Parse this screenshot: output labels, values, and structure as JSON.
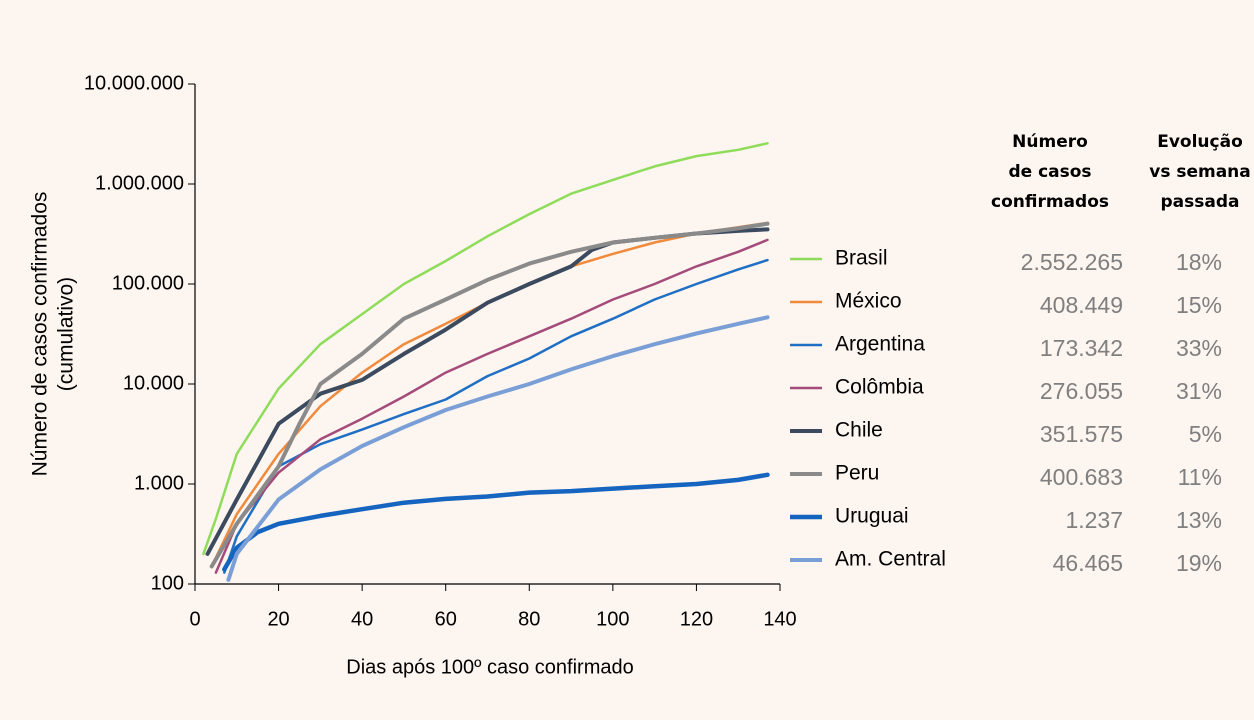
{
  "chart_data": {
    "type": "line",
    "log_scale": true,
    "grid": false,
    "xlabel": "Dias após 100º caso confirmado",
    "ylabel": [
      "Número de casos confirmados",
      "(cumulativo)"
    ],
    "xlim": [
      0,
      140
    ],
    "xticks": [
      0,
      20,
      40,
      60,
      80,
      100,
      120,
      140
    ],
    "ylim": [
      100,
      10000000
    ],
    "yticks": [
      {
        "value": 100,
        "label": "100"
      },
      {
        "value": 1000,
        "label": "1.000"
      },
      {
        "value": 10000,
        "label": "10.000"
      },
      {
        "value": 100000,
        "label": "100.000"
      },
      {
        "value": 1000000,
        "label": "1.000.000"
      },
      {
        "value": 10000000,
        "label": "10.000.000"
      }
    ],
    "series": [
      {
        "name": "Brasil",
        "color": "#8fdc5a",
        "width": 2.5,
        "x": [
          2,
          5,
          10,
          20,
          30,
          40,
          50,
          60,
          70,
          80,
          90,
          100,
          110,
          120,
          130,
          137
        ],
        "values": [
          200,
          450,
          2000,
          9000,
          25000,
          50000,
          100000,
          170000,
          300000,
          500000,
          800000,
          1100000,
          1500000,
          1900000,
          2200000,
          2552265
        ]
      },
      {
        "name": "México",
        "color": "#f08a3c",
        "width": 2.5,
        "x": [
          4,
          10,
          20,
          30,
          40,
          50,
          60,
          70,
          80,
          90,
          100,
          110,
          120,
          130,
          137
        ],
        "values": [
          150,
          500,
          2000,
          6000,
          13000,
          25000,
          40000,
          65000,
          100000,
          150000,
          200000,
          260000,
          320000,
          370000,
          408449
        ]
      },
      {
        "name": "Argentina",
        "color": "#1f6fc4",
        "width": 2.5,
        "x": [
          7,
          10,
          20,
          30,
          40,
          50,
          60,
          70,
          80,
          90,
          100,
          110,
          120,
          130,
          137
        ],
        "values": [
          130,
          300,
          1500,
          2500,
          3500,
          5000,
          7000,
          12000,
          18000,
          30000,
          45000,
          70000,
          100000,
          140000,
          173342
        ]
      },
      {
        "name": "Colômbia",
        "color": "#a44b7a",
        "width": 2.5,
        "x": [
          5,
          10,
          20,
          30,
          40,
          50,
          60,
          70,
          80,
          90,
          100,
          110,
          120,
          130,
          137
        ],
        "values": [
          130,
          400,
          1300,
          2800,
          4500,
          7500,
          13000,
          20000,
          30000,
          45000,
          70000,
          100000,
          150000,
          210000,
          276055
        ]
      },
      {
        "name": "Chile",
        "color": "#3b4a5e",
        "width": 4,
        "x": [
          3,
          10,
          20,
          30,
          40,
          50,
          60,
          70,
          80,
          90,
          95,
          100,
          110,
          120,
          130,
          137
        ],
        "values": [
          200,
          700,
          4000,
          8000,
          11000,
          20000,
          35000,
          65000,
          100000,
          150000,
          220000,
          260000,
          290000,
          320000,
          340000,
          351575
        ]
      },
      {
        "name": "Peru",
        "color": "#8a8a8a",
        "width": 4,
        "x": [
          4,
          10,
          20,
          25,
          30,
          40,
          50,
          60,
          70,
          80,
          90,
          100,
          110,
          120,
          130,
          137
        ],
        "values": [
          150,
          400,
          1500,
          4000,
          10000,
          20000,
          45000,
          70000,
          110000,
          160000,
          210000,
          260000,
          290000,
          320000,
          360000,
          400683
        ]
      },
      {
        "name": "Uruguai",
        "color": "#1565c0",
        "width": 4.5,
        "x": [
          7,
          10,
          15,
          20,
          30,
          40,
          50,
          60,
          70,
          80,
          90,
          100,
          110,
          120,
          130,
          137
        ],
        "values": [
          140,
          230,
          330,
          400,
          480,
          560,
          650,
          710,
          750,
          820,
          850,
          900,
          950,
          1000,
          1100,
          1237
        ]
      },
      {
        "name": "Am. Central",
        "color": "#7a9fd6",
        "width": 4,
        "x": [
          8,
          10,
          20,
          30,
          40,
          50,
          60,
          70,
          80,
          90,
          100,
          110,
          120,
          130,
          137
        ],
        "values": [
          110,
          200,
          700,
          1400,
          2400,
          3700,
          5500,
          7500,
          10000,
          14000,
          19000,
          25000,
          32000,
          40000,
          46465
        ]
      }
    ]
  },
  "table": {
    "headers": [
      [
        "Número",
        "de casos",
        "confirmados"
      ],
      [
        "Evolução",
        "vs semana",
        "passada"
      ]
    ],
    "rows": [
      [
        "2.552.265",
        "18%"
      ],
      [
        "408.449",
        "15%"
      ],
      [
        "173.342",
        "33%"
      ],
      [
        "276.055",
        "31%"
      ],
      [
        "351.575",
        "5%"
      ],
      [
        "400.683",
        "11%"
      ],
      [
        "1.237",
        "13%"
      ],
      [
        "46.465",
        "19%"
      ]
    ]
  }
}
